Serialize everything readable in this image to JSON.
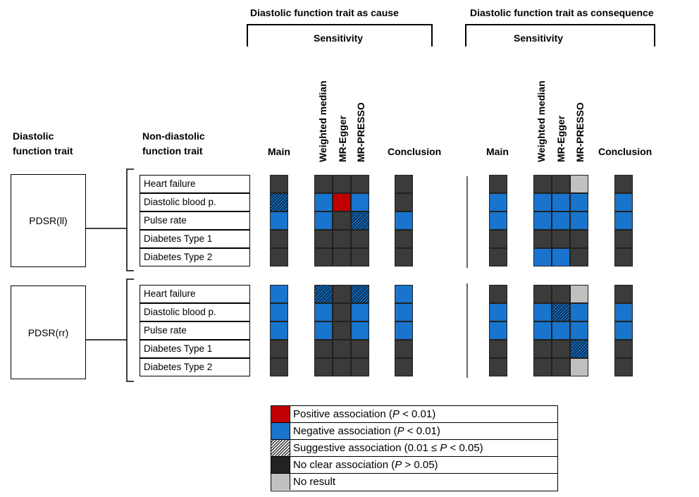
{
  "headers": {
    "cause_title": "Diastolic function trait as cause",
    "consequence_title": "Diastolic function trait as consequence",
    "sensitivity": "Sensitivity",
    "col_main": "Main",
    "col_weighted_median": "Weighted median",
    "col_mr_egger": "MR-Egger",
    "col_mr_presso": "MR-PRESSO",
    "col_conclusion": "Conclusion",
    "diastolic_trait_line1": "Diastolic",
    "diastolic_trait_line2": "function trait",
    "nondiastolic_trait_line1": "Non-diastolic",
    "nondiastolic_trait_line2": "function trait"
  },
  "columns": [
    "Main",
    "Weighted median",
    "MR-Egger",
    "MR-PRESSO",
    "Conclusion"
  ],
  "groups": [
    {
      "trait": "PDSR(ll)",
      "rows": [
        {
          "outcome": "Heart failure",
          "cause": [
            "none",
            "none",
            "none",
            "none",
            "none"
          ],
          "consequence": [
            "none",
            "none",
            "none",
            "nores",
            "none"
          ]
        },
        {
          "outcome": "Diastolic blood p.",
          "cause": [
            "neg-sug",
            "neg",
            "pos",
            "neg",
            "none"
          ],
          "consequence": [
            "neg",
            "neg",
            "neg",
            "neg",
            "neg"
          ]
        },
        {
          "outcome": "Pulse rate",
          "cause": [
            "neg",
            "neg",
            "none",
            "sug",
            "neg"
          ],
          "consequence": [
            "neg",
            "neg",
            "neg",
            "neg",
            "neg"
          ]
        },
        {
          "outcome": "Diabetes Type 1",
          "cause": [
            "none",
            "none",
            "none",
            "none",
            "none"
          ],
          "consequence": [
            "none",
            "none",
            "none",
            "none",
            "none"
          ]
        },
        {
          "outcome": "Diabetes Type 2",
          "cause": [
            "none",
            "none",
            "none",
            "none",
            "none"
          ],
          "consequence": [
            "none",
            "neg",
            "neg",
            "none",
            "none"
          ]
        }
      ]
    },
    {
      "trait": "PDSR(rr)",
      "rows": [
        {
          "outcome": "Heart failure",
          "cause": [
            "neg",
            "sug",
            "none",
            "sug",
            "neg"
          ],
          "consequence": [
            "none",
            "none",
            "none",
            "nores",
            "none"
          ]
        },
        {
          "outcome": "Diastolic blood p.",
          "cause": [
            "neg",
            "neg",
            "none",
            "neg",
            "neg"
          ],
          "consequence": [
            "neg",
            "neg",
            "sug",
            "neg",
            "neg"
          ]
        },
        {
          "outcome": "Pulse rate",
          "cause": [
            "neg",
            "neg",
            "none",
            "neg",
            "neg"
          ],
          "consequence": [
            "neg",
            "neg",
            "neg",
            "neg",
            "neg"
          ]
        },
        {
          "outcome": "Diabetes Type 1",
          "cause": [
            "none",
            "none",
            "none",
            "none",
            "none"
          ],
          "consequence": [
            "none",
            "none",
            "none",
            "sug",
            "none"
          ]
        },
        {
          "outcome": "Diabetes Type 2",
          "cause": [
            "none",
            "none",
            "none",
            "none",
            "none"
          ],
          "consequence": [
            "none",
            "none",
            "none",
            "nores",
            "none"
          ]
        }
      ]
    }
  ],
  "legend": [
    {
      "key": "pos",
      "text": "Positive association (",
      "p": "P",
      "rest": " < 0.01)",
      "color": "#c00000"
    },
    {
      "key": "neg",
      "text": "Negative association (",
      "p": "P",
      "rest": " < 0.01)",
      "color": "#1874cd"
    },
    {
      "key": "sug",
      "text": "Suggestive association (0.01 ≤ ",
      "p": "P",
      "rest": " < 0.05)",
      "color": "#333333"
    },
    {
      "key": "none",
      "text": "No clear association (",
      "p": "P",
      "rest": " > 0.05)",
      "color": "#222222"
    },
    {
      "key": "nores",
      "text": "No result",
      "p": "",
      "rest": "",
      "color": "#c0c0c0"
    }
  ]
}
